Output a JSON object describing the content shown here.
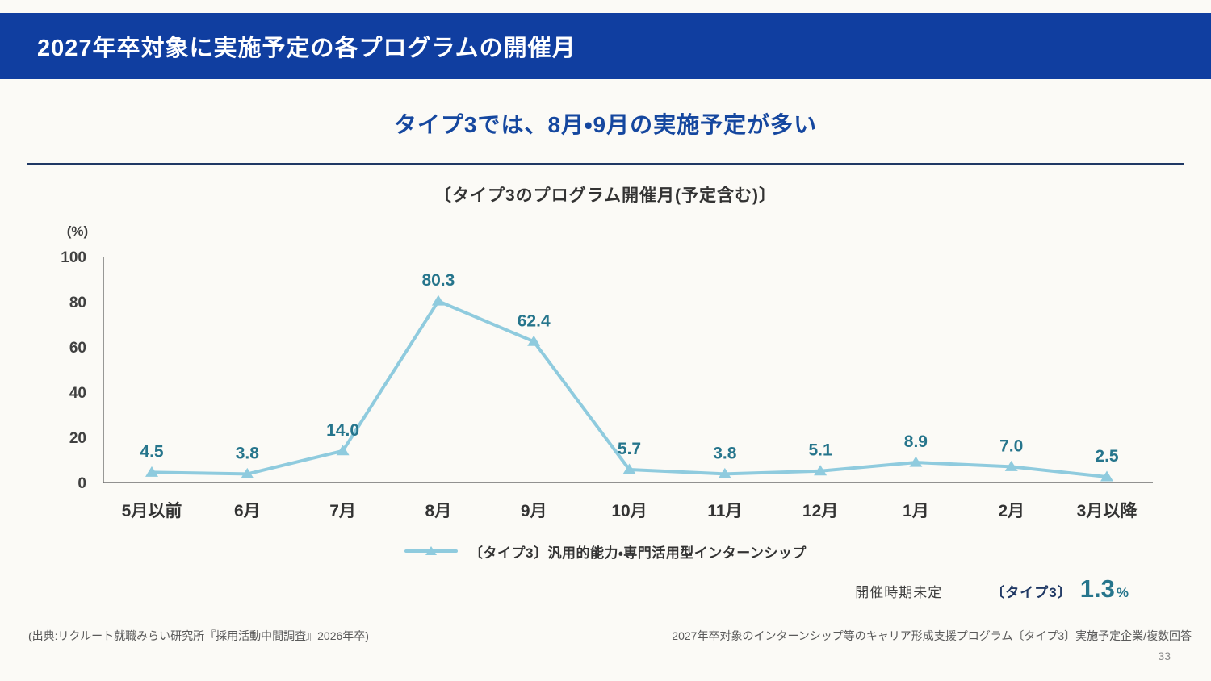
{
  "header": {
    "title": "2027年卒対象に実施予定の各プログラムの開催月"
  },
  "subtitle": "タイプ3では、8月・9月の実施予定が多い",
  "chart_data": {
    "type": "line",
    "title": "〔タイプ3のプログラム開催月(予定含む)〕",
    "unit_label": "(%)",
    "categories": [
      "5月以前",
      "6月",
      "7月",
      "8月",
      "9月",
      "10月",
      "11月",
      "12月",
      "1月",
      "2月",
      "3月以降"
    ],
    "values": [
      4.5,
      3.8,
      14.0,
      80.3,
      62.4,
      5.7,
      3.8,
      5.1,
      8.9,
      7.0,
      2.5
    ],
    "value_labels": [
      "4.5",
      "3.8",
      "14.0",
      "80.3",
      "62.4",
      "5.7",
      "3.8",
      "5.1",
      "8.9",
      "7.0",
      "2.5"
    ],
    "ylim": [
      0,
      100
    ],
    "yticks": [
      0,
      20,
      40,
      60,
      80,
      100
    ],
    "grid": false,
    "legend_position": "bottom",
    "series_label": "〔タイプ3〕汎用的能力・専門活用型インターンシップ",
    "line_color": "#8FCBDE",
    "label_color": "#26758C"
  },
  "undecided": {
    "label": "開催時期未定",
    "type_label": "〔タイプ3〕",
    "value": "1.3",
    "unit": "%"
  },
  "footer": {
    "source": "(出典:リクルート就職みらい研究所『採用活動中間調査』2026年卒)",
    "note": "2027年卒対象のインターンシップ等のキャリア形成支援プログラム〔タイプ3〕実施予定企業/複数回答",
    "page": "33"
  },
  "colors": {
    "header_bg": "#103EA0",
    "subtitle": "#15479F",
    "divider": "#1F3864",
    "line": "#8FCBDE",
    "data_label": "#26758C"
  }
}
